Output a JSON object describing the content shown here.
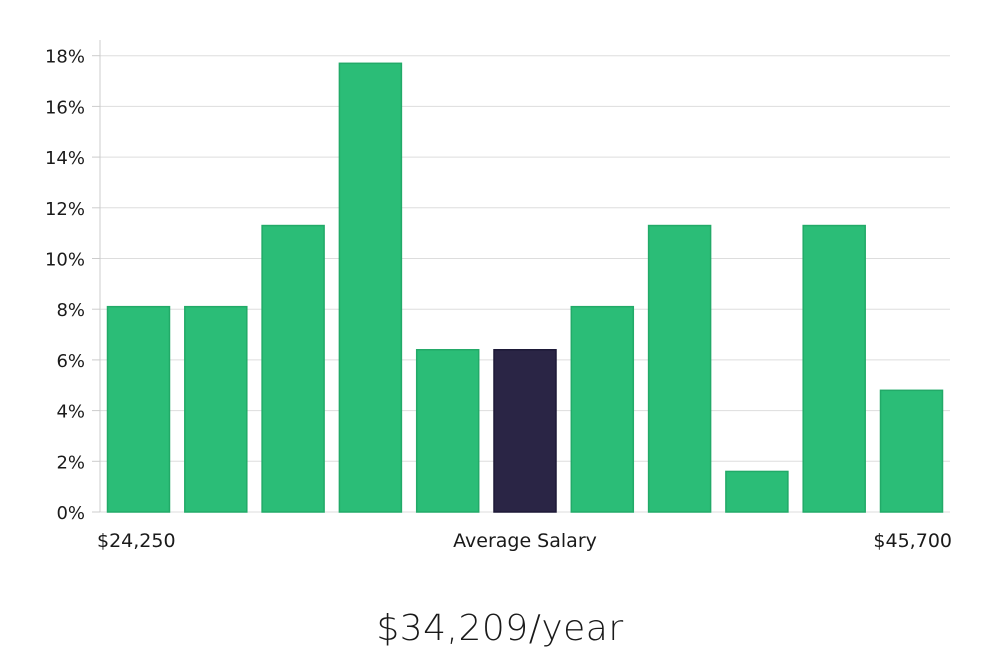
{
  "chart_data": {
    "type": "bar",
    "title": "",
    "xlabel": "Average Salary",
    "ylabel": "",
    "x_range_labels": {
      "min": "$24,250",
      "max": "$45,700"
    },
    "ylim": [
      0,
      18
    ],
    "y_tick_values": [
      0,
      2,
      4,
      6,
      8,
      10,
      12,
      14,
      16,
      18
    ],
    "y_tick_labels": [
      "0%",
      "2%",
      "4%",
      "6%",
      "8%",
      "10%",
      "12%",
      "14%",
      "16%",
      "18%"
    ],
    "grid": true,
    "values": [
      8.1,
      8.1,
      11.3,
      17.7,
      6.4,
      6.4,
      8.1,
      11.3,
      1.6,
      11.3,
      4.8
    ],
    "highlight_index": 5,
    "colors": {
      "bar": "#2bbd77",
      "bar_edge": "#22aa68",
      "highlight": "#2a2545",
      "grid": "#dddddd",
      "axis": "#cccccc"
    }
  },
  "summary": {
    "salary": "$34,209/year"
  }
}
